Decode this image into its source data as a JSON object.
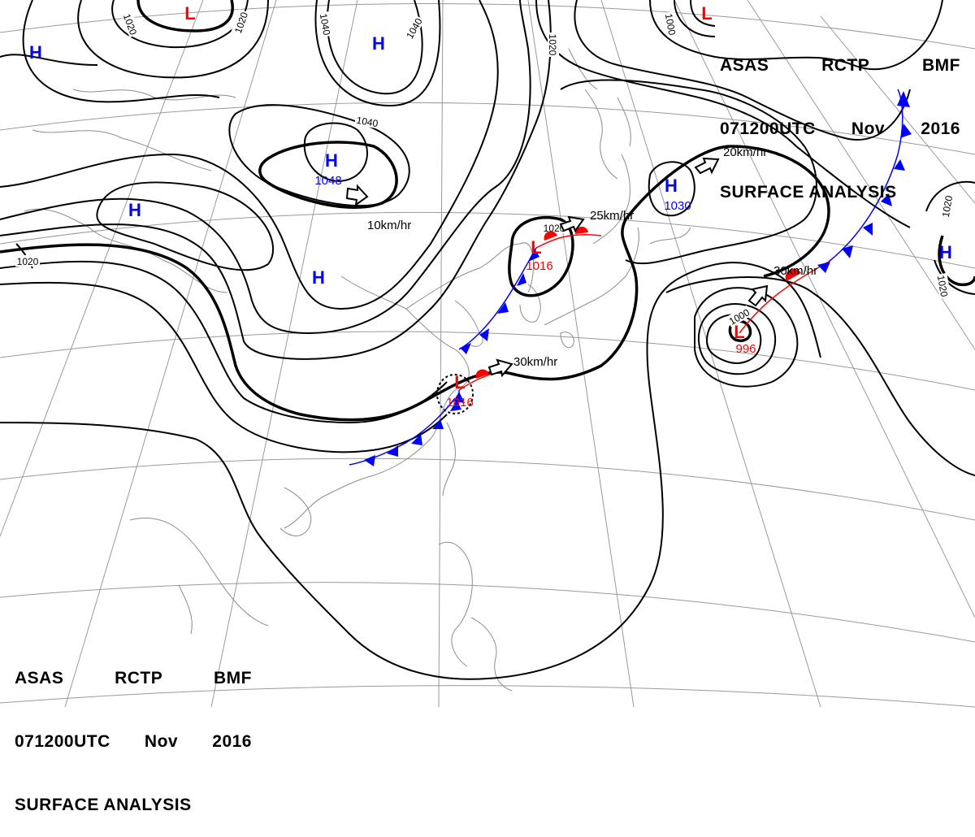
{
  "header_top_right": {
    "line1": [
      "ASAS",
      "RCTP",
      "BMF"
    ],
    "line2": [
      "071200UTC",
      "Nov",
      "2016"
    ],
    "line3": "SURFACE ANALYSIS"
  },
  "header_bottom_left": {
    "line1": [
      "ASAS",
      "RCTP",
      "BMF"
    ],
    "line2": [
      "071200UTC",
      "Nov",
      "2016"
    ],
    "line3": "SURFACE ANALYSIS"
  },
  "colors": {
    "high": "#0000ff",
    "low": "#ff0000",
    "isobar": "#000000",
    "coast": "#888888",
    "grid": "#999999"
  },
  "pressure_centers": [
    {
      "type": "H",
      "value": ""
    },
    {
      "type": "H",
      "value": ""
    },
    {
      "type": "H",
      "value": "1048"
    },
    {
      "type": "H",
      "value": ""
    },
    {
      "type": "H",
      "value": ""
    },
    {
      "type": "H",
      "value": "1030"
    },
    {
      "type": "H",
      "value": ""
    },
    {
      "type": "L",
      "value": ""
    },
    {
      "type": "L",
      "value": ""
    },
    {
      "type": "L",
      "value": "1016"
    },
    {
      "type": "L",
      "value": "1016"
    },
    {
      "type": "L",
      "value": "996"
    }
  ],
  "isobar_labels": [
    "1020",
    "1020",
    "1040",
    "1040",
    "1040",
    "1020",
    "1000",
    "1020",
    "1020",
    "1020",
    "1020",
    "1000"
  ],
  "movements": [
    "10km/hr",
    "20km/hr",
    "25km/hr",
    "30km/hr",
    "30km/hr"
  ],
  "fronts": [
    "cold-front-east",
    "cold-front-south",
    "warm-front-north",
    "warm-front-south",
    "warm-front-east"
  ]
}
